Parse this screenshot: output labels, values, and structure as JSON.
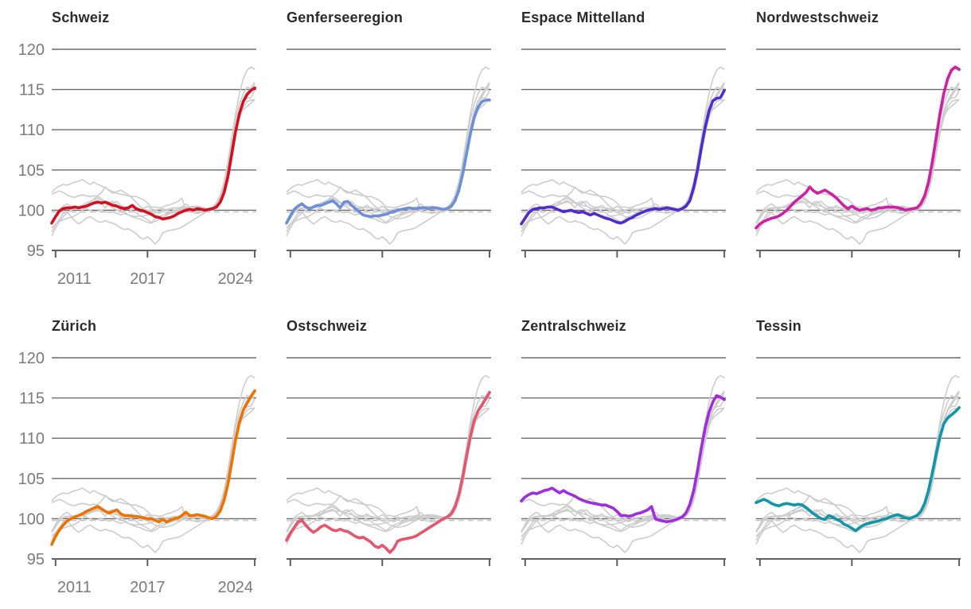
{
  "colors": {
    "background": "#ffffff",
    "title": "#2b2b2b",
    "grid": "#6a6a6a",
    "axis": "#5f5f5f",
    "tick_label": "#7b7b7b",
    "gray_series": "#cdcdcd",
    "reference_dash": "#c6c6c6"
  },
  "chart_data": {
    "type": "line",
    "layout": "small-multiples 4x2, one region highlighted per panel, all other regions gray",
    "x_start": 2010.75,
    "x_step": 0.25,
    "xlim": [
      2010.75,
      2024.1
    ],
    "ylim": [
      95,
      120
    ],
    "y_ticks": [
      95,
      100,
      105,
      110,
      115,
      120
    ],
    "x_ticks": [
      {
        "label": "2011",
        "year": 2011
      },
      {
        "label": "2017",
        "year": 2017
      },
      {
        "label": "2024",
        "year": 2024
      }
    ],
    "reference_line": 100,
    "grid": true,
    "series": [
      {
        "name": "Schweiz",
        "key": "schweiz",
        "color": "#d50f1f",
        "values": [
          98.4,
          99.2,
          99.9,
          100.2,
          100.3,
          100.3,
          100.4,
          100.3,
          100.4,
          100.5,
          100.7,
          100.9,
          101.0,
          100.9,
          101.0,
          100.8,
          100.6,
          100.5,
          100.3,
          100.2,
          100.3,
          100.6,
          100.2,
          100.0,
          99.9,
          99.7,
          99.5,
          99.2,
          99.1,
          98.9,
          99.0,
          99.1,
          99.3,
          99.6,
          99.8,
          100.0,
          100.1,
          100.0,
          100.2,
          100.1,
          100.0,
          100.1,
          100.2,
          100.4,
          101.0,
          102.2,
          104.2,
          107.0,
          109.8,
          112.0,
          113.5,
          114.4,
          114.9,
          115.2
        ]
      },
      {
        "name": "Genferseeregion",
        "key": "genferseeregion",
        "color": "#6d8fd8",
        "values": [
          98.4,
          99.3,
          100.1,
          100.5,
          100.8,
          100.4,
          100.2,
          100.4,
          100.6,
          100.6,
          100.8,
          101.0,
          101.2,
          100.8,
          100.3,
          101.0,
          101.1,
          100.6,
          100.2,
          99.8,
          99.4,
          99.3,
          99.2,
          99.3,
          99.3,
          99.4,
          99.5,
          99.7,
          99.8,
          100.0,
          100.1,
          100.2,
          100.3,
          100.2,
          100.2,
          100.3,
          100.3,
          100.2,
          100.3,
          100.3,
          100.2,
          100.1,
          100.2,
          100.5,
          101.2,
          102.5,
          104.5,
          107.0,
          109.5,
          111.5,
          112.8,
          113.5,
          113.7,
          113.7
        ]
      },
      {
        "name": "Espace Mittelland",
        "key": "espace-mittelland",
        "color": "#4f2bd0",
        "values": [
          98.3,
          99.0,
          99.7,
          100.1,
          100.2,
          100.3,
          100.3,
          100.4,
          100.4,
          100.2,
          100.0,
          99.8,
          99.9,
          100.0,
          99.8,
          99.7,
          99.8,
          99.6,
          99.4,
          99.6,
          99.4,
          99.2,
          99.0,
          98.9,
          98.7,
          98.5,
          98.4,
          98.6,
          98.9,
          99.1,
          99.4,
          99.6,
          99.8,
          100.0,
          100.1,
          100.2,
          100.1,
          100.2,
          100.3,
          100.2,
          100.1,
          100.0,
          100.2,
          100.5,
          101.2,
          102.8,
          105.0,
          107.8,
          110.3,
          112.3,
          113.6,
          113.9,
          114.0,
          114.9
        ]
      },
      {
        "name": "Nordwestschweiz",
        "key": "nordwestschweiz",
        "color": "#cf1fa6",
        "values": [
          97.8,
          98.3,
          98.6,
          98.8,
          99.0,
          99.1,
          99.3,
          99.6,
          100.0,
          100.5,
          101.0,
          101.4,
          101.8,
          102.2,
          102.9,
          102.4,
          102.1,
          102.3,
          102.5,
          102.2,
          101.9,
          101.5,
          101.0,
          100.5,
          100.2,
          100.5,
          100.2,
          100.0,
          100.1,
          100.2,
          100.0,
          100.1,
          100.3,
          100.3,
          100.4,
          100.4,
          100.4,
          100.3,
          100.2,
          100.0,
          100.1,
          100.2,
          100.3,
          100.8,
          101.8,
          103.5,
          106.0,
          109.0,
          112.0,
          114.5,
          116.3,
          117.4,
          117.8,
          117.5
        ]
      },
      {
        "name": "Zürich",
        "key": "zuerich",
        "color": "#ef7100",
        "values": [
          96.8,
          97.8,
          98.6,
          99.2,
          99.7,
          100.0,
          100.2,
          100.4,
          100.6,
          100.9,
          101.1,
          101.3,
          101.5,
          101.2,
          100.9,
          100.7,
          100.9,
          101.1,
          100.6,
          100.4,
          100.4,
          100.3,
          100.3,
          100.2,
          100.1,
          100.0,
          100.0,
          99.8,
          99.6,
          99.9,
          99.6,
          99.8,
          100.0,
          100.1,
          100.4,
          100.8,
          100.4,
          100.4,
          100.5,
          100.4,
          100.3,
          100.1,
          100.0,
          100.3,
          101.0,
          102.3,
          104.3,
          107.0,
          109.8,
          112.0,
          113.5,
          114.4,
          115.2,
          115.9
        ]
      },
      {
        "name": "Ostschweiz",
        "key": "ostschweiz",
        "color": "#e4566c",
        "values": [
          97.3,
          98.2,
          98.9,
          99.6,
          99.8,
          99.2,
          98.7,
          98.3,
          98.6,
          99.0,
          99.2,
          98.9,
          98.6,
          98.5,
          98.7,
          98.5,
          98.4,
          98.1,
          97.8,
          97.6,
          97.7,
          97.4,
          97.1,
          96.6,
          96.4,
          96.7,
          96.3,
          95.8,
          96.3,
          97.2,
          97.4,
          97.5,
          97.6,
          97.7,
          97.9,
          98.2,
          98.5,
          98.8,
          99.1,
          99.4,
          99.7,
          100.0,
          100.2,
          100.6,
          101.5,
          103.0,
          105.2,
          107.8,
          110.2,
          112.2,
          113.4,
          114.1,
          114.9,
          115.7
        ]
      },
      {
        "name": "Zentralschweiz",
        "key": "zentralschweiz",
        "color": "#a02ce0",
        "values": [
          102.2,
          102.7,
          103.0,
          103.2,
          103.1,
          103.3,
          103.5,
          103.6,
          103.8,
          103.5,
          103.2,
          103.5,
          103.2,
          103.0,
          102.8,
          102.5,
          102.3,
          102.1,
          102.0,
          101.9,
          101.8,
          101.7,
          101.7,
          101.5,
          101.3,
          100.9,
          100.4,
          100.4,
          100.3,
          100.4,
          100.6,
          100.7,
          100.9,
          101.1,
          101.5,
          100.0,
          99.8,
          99.7,
          99.6,
          99.7,
          99.8,
          100.0,
          100.2,
          100.7,
          101.8,
          103.5,
          106.0,
          108.8,
          111.3,
          113.2,
          114.5,
          115.3,
          115.1,
          114.8
        ]
      },
      {
        "name": "Tessin",
        "key": "tessin",
        "color": "#0f96a8",
        "values": [
          102.0,
          102.2,
          102.4,
          102.2,
          101.9,
          101.7,
          101.6,
          101.8,
          101.9,
          101.8,
          101.7,
          101.8,
          101.7,
          101.4,
          101.0,
          100.6,
          100.3,
          100.0,
          99.9,
          100.4,
          100.2,
          99.9,
          99.7,
          99.3,
          99.1,
          98.8,
          98.5,
          98.9,
          99.2,
          99.4,
          99.5,
          99.6,
          99.7,
          99.9,
          100.0,
          100.2,
          100.4,
          100.5,
          100.3,
          100.1,
          100.0,
          100.2,
          100.4,
          100.9,
          101.9,
          103.5,
          105.7,
          108.0,
          110.2,
          111.8,
          112.5,
          112.9,
          113.3,
          113.8
        ]
      }
    ]
  }
}
